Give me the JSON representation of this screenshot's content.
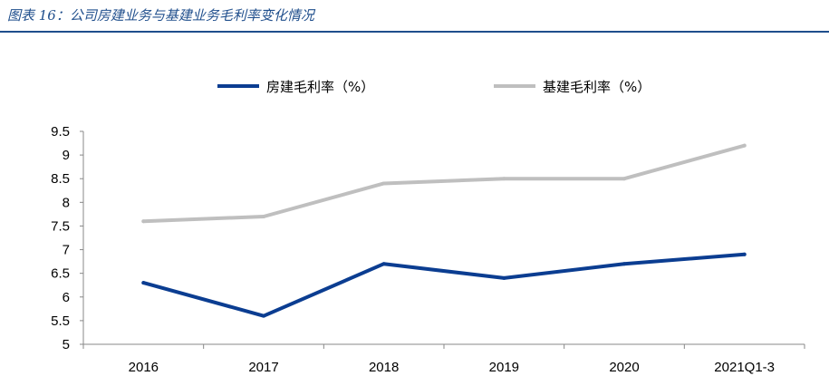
{
  "figure": {
    "title": "图表 16：公司房建业务与基建业务毛利率变化情况"
  },
  "chart_data": {
    "type": "line",
    "categories": [
      "2016",
      "2017",
      "2018",
      "2019",
      "2020",
      "2021Q1-3"
    ],
    "series": [
      {
        "name": "房建毛利率（%）",
        "values": [
          6.3,
          5.6,
          6.7,
          6.4,
          6.7,
          6.9
        ],
        "color": "#0b3d91"
      },
      {
        "name": "基建毛利率（%）",
        "values": [
          7.6,
          7.7,
          8.4,
          8.5,
          8.5,
          9.2
        ],
        "color": "#bfbfbf"
      }
    ],
    "ylim": [
      5,
      9.5
    ],
    "yticks": [
      "5",
      "5.5",
      "6",
      "6.5",
      "7",
      "7.5",
      "8",
      "8.5",
      "9",
      "9.5"
    ],
    "xlabel": "",
    "ylabel": "",
    "grid": false,
    "legend": "top"
  }
}
